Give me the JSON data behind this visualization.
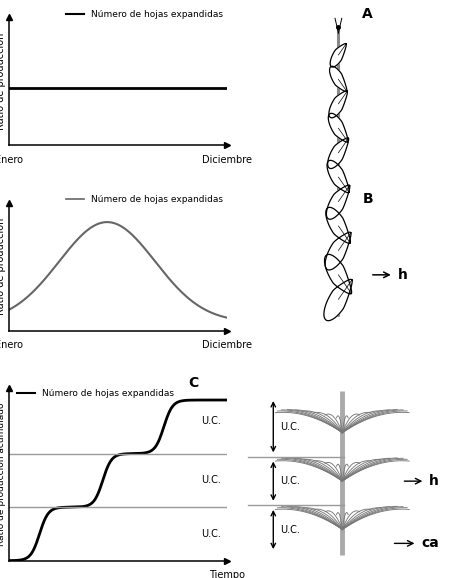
{
  "panel_A_label": "A",
  "panel_B_label": "B",
  "panel_C_label": "C",
  "legend_label": "Número de hojas expandidas",
  "xlabel_A": "Enero",
  "xticklabel_A": "Diciembre",
  "ylabel_A": "Ratio de producción",
  "xlabel_B": "Enero",
  "xticklabel_B": "Diciembre",
  "ylabel_B": "Ratio de producción",
  "xlabel_C": "Tiempo",
  "ylabel_C": "Ratio de producción acumulado",
  "uc_label": "U.C.",
  "h_label": "h",
  "ca_label": "ca",
  "line_color_A": "#000000",
  "line_color_B": "#666666",
  "line_color_C": "#000000",
  "bg_color": "#ffffff",
  "hline_color": "#999999",
  "stem_color": "#aaaaaa",
  "leaf_color": "#000000"
}
